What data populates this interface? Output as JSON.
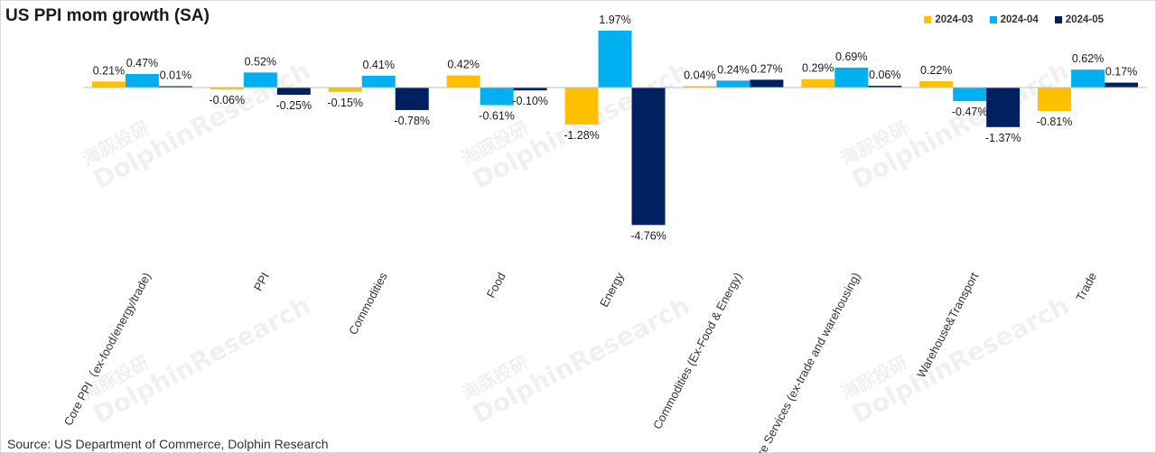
{
  "title": "US PPI mom growth (SA)",
  "source": "Source: US Department of Commerce, Dolphin Research",
  "watermark": {
    "cn": "海豚投研",
    "en": "DolphinResearch"
  },
  "colors": {
    "2024-03": "#FFC000",
    "2024-04": "#00B0F0",
    "2024-05": "#002060"
  },
  "chart_data": {
    "type": "bar",
    "title": "US PPI mom growth (SA)",
    "xlabel": "",
    "ylabel": "",
    "ylim": [
      -4.76,
      1.97
    ],
    "categories": [
      "Core PPI（ex-food/energy/trade)",
      "PPI",
      "Commodities",
      "Food",
      "Energy",
      "Commodities (Ex-Food & Energy)",
      "Core Services (ex-trade and warehousing)",
      "Warehouse&Transport",
      "Trade"
    ],
    "series": [
      {
        "name": "2024-03",
        "values": [
          0.21,
          -0.06,
          -0.15,
          0.42,
          -1.28,
          0.04,
          0.29,
          0.22,
          -0.81
        ],
        "labels": [
          "0.21%",
          "-0.06%",
          "-0.15%",
          "0.42%",
          "-1.28%",
          "0.04%",
          "0.29%",
          "0.22%",
          "-0.81%"
        ]
      },
      {
        "name": "2024-04",
        "values": [
          0.47,
          0.52,
          0.41,
          -0.61,
          1.97,
          0.24,
          0.69,
          -0.47,
          0.62
        ],
        "labels": [
          "0.47%",
          "0.52%",
          "0.41%",
          "-0.61%",
          "1.97%",
          "0.24%",
          "0.69%",
          "-0.47%",
          "0.62%"
        ]
      },
      {
        "name": "2024-05",
        "values": [
          0.01,
          -0.25,
          -0.78,
          -0.1,
          -4.76,
          0.27,
          0.06,
          -1.37,
          0.17
        ],
        "labels": [
          "0.01%",
          "-0.25%",
          "-0.78%",
          "-0.10%",
          "-4.76%",
          "0.27%",
          "0.06%",
          "-1.37%",
          "0.17%"
        ]
      }
    ],
    "legend": "top-right",
    "grid": false
  }
}
